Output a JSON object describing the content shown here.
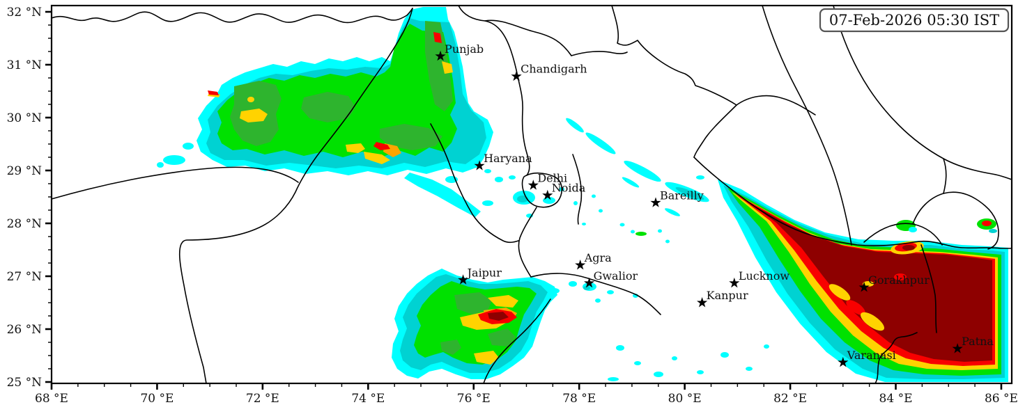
{
  "stamp": {
    "text": "07-Feb-2026 05:30 IST"
  },
  "map": {
    "type": "geographic contour map (fog/low-visibility intensity over northern India)",
    "extent": {
      "lon_min": 68,
      "lon_max": 86.2,
      "lat_min": 25.03,
      "lat_max": 32.12
    },
    "axes": {
      "x_tick_values": [
        68,
        70,
        72,
        74,
        76,
        78,
        80,
        82,
        84,
        86
      ],
      "x_tick_labels": [
        "68 °E",
        "70 °E",
        "72 °E",
        "74 °E",
        "76 °E",
        "78 °E",
        "80 °E",
        "82 °E",
        "84 °E",
        "86 °E"
      ],
      "x_minor_step": 0.5,
      "y_tick_values": [
        32,
        31,
        30,
        29,
        28,
        27,
        26,
        25
      ],
      "y_tick_labels": [
        "32 °N",
        "31 °N",
        "30 °N",
        "29 °N",
        "28 °N",
        "27 °N",
        "26 °N",
        "25 °N"
      ],
      "y_minor_step": 0.25
    },
    "cities": [
      {
        "name": "Punjab",
        "lon": 75.37,
        "lat": 31.16
      },
      {
        "name": "Chandigarh",
        "lon": 76.81,
        "lat": 30.78
      },
      {
        "name": "Haryana",
        "lon": 76.11,
        "lat": 29.09
      },
      {
        "name": "Delhi",
        "lon": 77.13,
        "lat": 28.72
      },
      {
        "name": "Noida",
        "lon": 77.4,
        "lat": 28.53
      },
      {
        "name": "Bareilly",
        "lon": 79.45,
        "lat": 28.39
      },
      {
        "name": "Agra",
        "lon": 78.02,
        "lat": 27.21
      },
      {
        "name": "Jaipur",
        "lon": 75.8,
        "lat": 26.93
      },
      {
        "name": "Gwalior",
        "lon": 78.19,
        "lat": 26.87
      },
      {
        "name": "Kanpur",
        "lon": 80.33,
        "lat": 26.5
      },
      {
        "name": "Lucknow",
        "lon": 80.94,
        "lat": 26.87
      },
      {
        "name": "Gorakhpur",
        "lon": 83.4,
        "lat": 26.79
      },
      {
        "name": "Varanasi",
        "lon": 83.0,
        "lat": 25.37
      },
      {
        "name": "Patna",
        "lon": 85.17,
        "lat": 25.63
      }
    ],
    "palette": {
      "c1": "#00ffff",
      "c2": "#00d2d2",
      "c3": "#00e100",
      "c4": "#2eb42e",
      "c5": "#ffd300",
      "c6": "#ffa500",
      "c7": "#f80000",
      "c8": "#8e0000"
    },
    "palette_meaning": "intensity levels low to high: cyan, dark-turquoise, green, dark-green, gold, orange, red, dark-red",
    "marker": {
      "shape": "star",
      "color": "#000000"
    },
    "frame_color": "#000000"
  }
}
